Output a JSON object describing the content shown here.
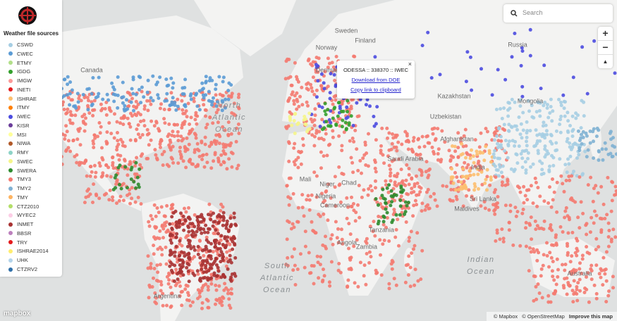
{
  "legend": {
    "title": "Weather file sources",
    "items": [
      {
        "label": "CSWD",
        "color": "#a6cee3"
      },
      {
        "label": "CWEC",
        "color": "#5b9bd5"
      },
      {
        "label": "ETMY",
        "color": "#b2df8a"
      },
      {
        "label": "IGDG",
        "color": "#33a02c"
      },
      {
        "label": "IMGW",
        "color": "#fb9a99"
      },
      {
        "label": "INETI",
        "color": "#e31a1c"
      },
      {
        "label": "ISHRAE",
        "color": "#fdbf6f"
      },
      {
        "label": "ITMY",
        "color": "#ff7f00"
      },
      {
        "label": "IWEC",
        "color": "#4b4be0"
      },
      {
        "label": "KISR",
        "color": "#6a3d9a"
      },
      {
        "label": "MSI",
        "color": "#ffff99"
      },
      {
        "label": "NIWA",
        "color": "#b15928"
      },
      {
        "label": "RMY",
        "color": "#8dd3c7"
      },
      {
        "label": "SWEC",
        "color": "#f5f58a"
      },
      {
        "label": "SWERA",
        "color": "#2e8b2e"
      },
      {
        "label": "TMY3",
        "color": "#f47a70"
      },
      {
        "label": "TMY2",
        "color": "#80b1d3"
      },
      {
        "label": "TMY",
        "color": "#fdb462"
      },
      {
        "label": "CTZ2010",
        "color": "#b3de69"
      },
      {
        "label": "WYEC2",
        "color": "#fccde5"
      },
      {
        "label": "INMET",
        "color": "#a83232"
      },
      {
        "label": "BBSR",
        "color": "#bc80bd"
      },
      {
        "label": "TRY",
        "color": "#e41a1c"
      },
      {
        "label": "ISHRAE2014",
        "color": "#ffed6f"
      },
      {
        "label": "UHK",
        "color": "#b3d4ea"
      },
      {
        "label": "CTZRV2",
        "color": "#2f6fa8"
      }
    ]
  },
  "popup": {
    "title": "ODESSA :: 338370 :: IWEC",
    "close": "×",
    "links": [
      "Download from DOE",
      "Copy link to clipboard"
    ]
  },
  "search": {
    "placeholder": "Search"
  },
  "controls": {
    "zoom_in": "+",
    "zoom_out": "−",
    "compass": "▲"
  },
  "map_labels": [
    "Canada",
    "North Atlantic Ocean",
    "South Atlantic Ocean",
    "Indian Ocean",
    "Sweden",
    "Finland",
    "Norway",
    "Russia",
    "Denmark",
    "Kazakhstan",
    "Mongolia",
    "Uzbekistan",
    "Afghanistan",
    "Saudi Arabia",
    "India",
    "Mali",
    "Niger",
    "Chad",
    "Nigeria",
    "Cameroon",
    "Tanzania",
    "Angola",
    "Zambia",
    "Sri Lanka",
    "Maldives",
    "Australia",
    "Argentina"
  ],
  "attribution": {
    "logo": "mapbox",
    "text": [
      "© Mapbox",
      "© OpenStreetMap",
      "Improve this map"
    ]
  }
}
